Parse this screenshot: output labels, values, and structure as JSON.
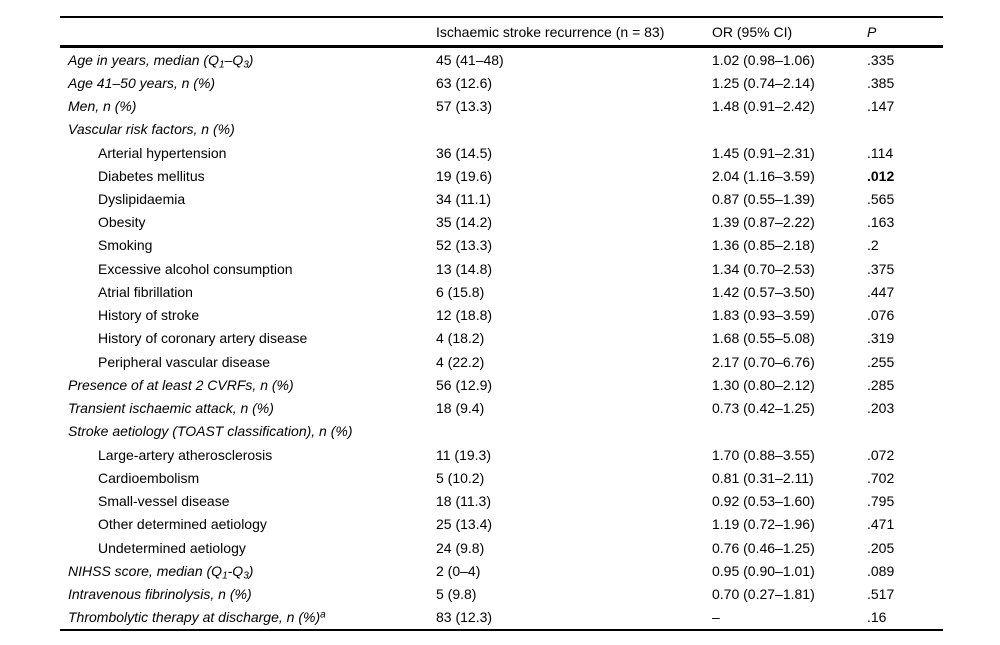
{
  "colors": {
    "text": "#000000",
    "background": "#ffffff",
    "rule": "#000000"
  },
  "header": {
    "label": "",
    "recurrence": "Ischaemic stroke recurrence (n = 83)",
    "or": "OR (95% CI)",
    "p": "P"
  },
  "rows": [
    {
      "label": [
        {
          "t": "Age in years, median (Q"
        },
        {
          "t": "1",
          "v": "sub"
        },
        {
          "t": "–Q"
        },
        {
          "t": "3",
          "v": "sub"
        },
        {
          "t": ")"
        }
      ],
      "italic": true,
      "indent": false,
      "recurrence": "45 (41–48)",
      "or": "1.02 (0.98–1.06)",
      "p": ".335"
    },
    {
      "label": [
        {
          "t": "Age 41–50 years, n (%)"
        }
      ],
      "italic": true,
      "indent": false,
      "recurrence": "63 (12.6)",
      "or": "1.25 (0.74–2.14)",
      "p": ".385"
    },
    {
      "label": [
        {
          "t": "Men, n (%)"
        }
      ],
      "italic": true,
      "indent": false,
      "recurrence": "57 (13.3)",
      "or": "1.48 (0.91–2.42)",
      "p": ".147"
    },
    {
      "label": [
        {
          "t": "Vascular risk factors, n (%)"
        }
      ],
      "italic": true,
      "indent": false,
      "recurrence": "",
      "or": "",
      "p": ""
    },
    {
      "label": [
        {
          "t": "Arterial hypertension"
        }
      ],
      "italic": false,
      "indent": true,
      "recurrence": "36 (14.5)",
      "or": "1.45 (0.91–2.31)",
      "p": ".114"
    },
    {
      "label": [
        {
          "t": "Diabetes mellitus"
        }
      ],
      "italic": false,
      "indent": true,
      "recurrence": "19 (19.6)",
      "or": "2.04 (1.16–3.59)",
      "p": ".012",
      "p_bold": true
    },
    {
      "label": [
        {
          "t": "Dyslipidaemia"
        }
      ],
      "italic": false,
      "indent": true,
      "recurrence": "34 (11.1)",
      "or": "0.87 (0.55–1.39)",
      "p": ".565"
    },
    {
      "label": [
        {
          "t": "Obesity"
        }
      ],
      "italic": false,
      "indent": true,
      "recurrence": "35 (14.2)",
      "or": "1.39 (0.87–2.22)",
      "p": ".163"
    },
    {
      "label": [
        {
          "t": "Smoking"
        }
      ],
      "italic": false,
      "indent": true,
      "recurrence": "52 (13.3)",
      "or": "1.36 (0.85–2.18)",
      "p": ".2"
    },
    {
      "label": [
        {
          "t": "Excessive alcohol consumption"
        }
      ],
      "italic": false,
      "indent": true,
      "recurrence": "13 (14.8)",
      "or": "1.34 (0.70–2.53)",
      "p": ".375"
    },
    {
      "label": [
        {
          "t": "Atrial fibrillation"
        }
      ],
      "italic": false,
      "indent": true,
      "recurrence": "6 (15.8)",
      "or": "1.42 (0.57–3.50)",
      "p": ".447"
    },
    {
      "label": [
        {
          "t": "History of stroke"
        }
      ],
      "italic": false,
      "indent": true,
      "recurrence": "12 (18.8)",
      "or": "1.83 (0.93–3.59)",
      "p": ".076"
    },
    {
      "label": [
        {
          "t": "History of coronary artery disease"
        }
      ],
      "italic": false,
      "indent": true,
      "recurrence": "4 (18.2)",
      "or": "1.68 (0.55–5.08)",
      "p": ".319"
    },
    {
      "label": [
        {
          "t": "Peripheral vascular disease"
        }
      ],
      "italic": false,
      "indent": true,
      "recurrence": "4 (22.2)",
      "or": "2.17 (0.70–6.76)",
      "p": ".255"
    },
    {
      "label": [
        {
          "t": "Presence of at least 2 CVRFs, n (%)"
        }
      ],
      "italic": true,
      "indent": false,
      "recurrence": "56 (12.9)",
      "or": "1.30 (0.80–2.12)",
      "p": ".285"
    },
    {
      "label": [
        {
          "t": "Transient ischaemic attack, n (%)"
        }
      ],
      "italic": true,
      "indent": false,
      "recurrence": "18 (9.4)",
      "or": "0.73 (0.42–1.25)",
      "p": ".203"
    },
    {
      "label": [
        {
          "t": "Stroke aetiology (TOAST classification), n (%)"
        }
      ],
      "italic": true,
      "indent": false,
      "recurrence": "",
      "or": "",
      "p": ""
    },
    {
      "label": [
        {
          "t": "Large-artery atherosclerosis"
        }
      ],
      "italic": false,
      "indent": true,
      "recurrence": "11 (19.3)",
      "or": "1.70 (0.88–3.55)",
      "p": ".072"
    },
    {
      "label": [
        {
          "t": "Cardioembolism"
        }
      ],
      "italic": false,
      "indent": true,
      "recurrence": "5 (10.2)",
      "or": "0.81 (0.31–2.11)",
      "p": ".702"
    },
    {
      "label": [
        {
          "t": "Small-vessel disease"
        }
      ],
      "italic": false,
      "indent": true,
      "recurrence": "18 (11.3)",
      "or": "0.92 (0.53–1.60)",
      "p": ".795"
    },
    {
      "label": [
        {
          "t": "Other determined aetiology"
        }
      ],
      "italic": false,
      "indent": true,
      "recurrence": "25 (13.4)",
      "or": "1.19 (0.72–1.96)",
      "p": ".471"
    },
    {
      "label": [
        {
          "t": "Undetermined aetiology"
        }
      ],
      "italic": false,
      "indent": true,
      "recurrence": "24 (9.8)",
      "or": "0.76 (0.46–1.25)",
      "p": ".205"
    },
    {
      "label": [
        {
          "t": "NIHSS score, median (Q"
        },
        {
          "t": "1",
          "v": "sub"
        },
        {
          "t": "-Q"
        },
        {
          "t": "3",
          "v": "sub"
        },
        {
          "t": ")"
        }
      ],
      "italic": true,
      "indent": false,
      "recurrence": "2 (0–4)",
      "or": "0.95 (0.90–1.01)",
      "p": ".089"
    },
    {
      "label": [
        {
          "t": "Intravenous fibrinolysis, n (%)"
        }
      ],
      "italic": true,
      "indent": false,
      "recurrence": "5 (9.8)",
      "or": "0.70 (0.27–1.81)",
      "p": ".517"
    },
    {
      "label": [
        {
          "t": "Thrombolytic therapy at discharge, n (%)"
        },
        {
          "t": "a",
          "v": "sup"
        }
      ],
      "italic": true,
      "indent": false,
      "recurrence": "83 (12.3)",
      "or": "–",
      "p": ".16"
    }
  ]
}
